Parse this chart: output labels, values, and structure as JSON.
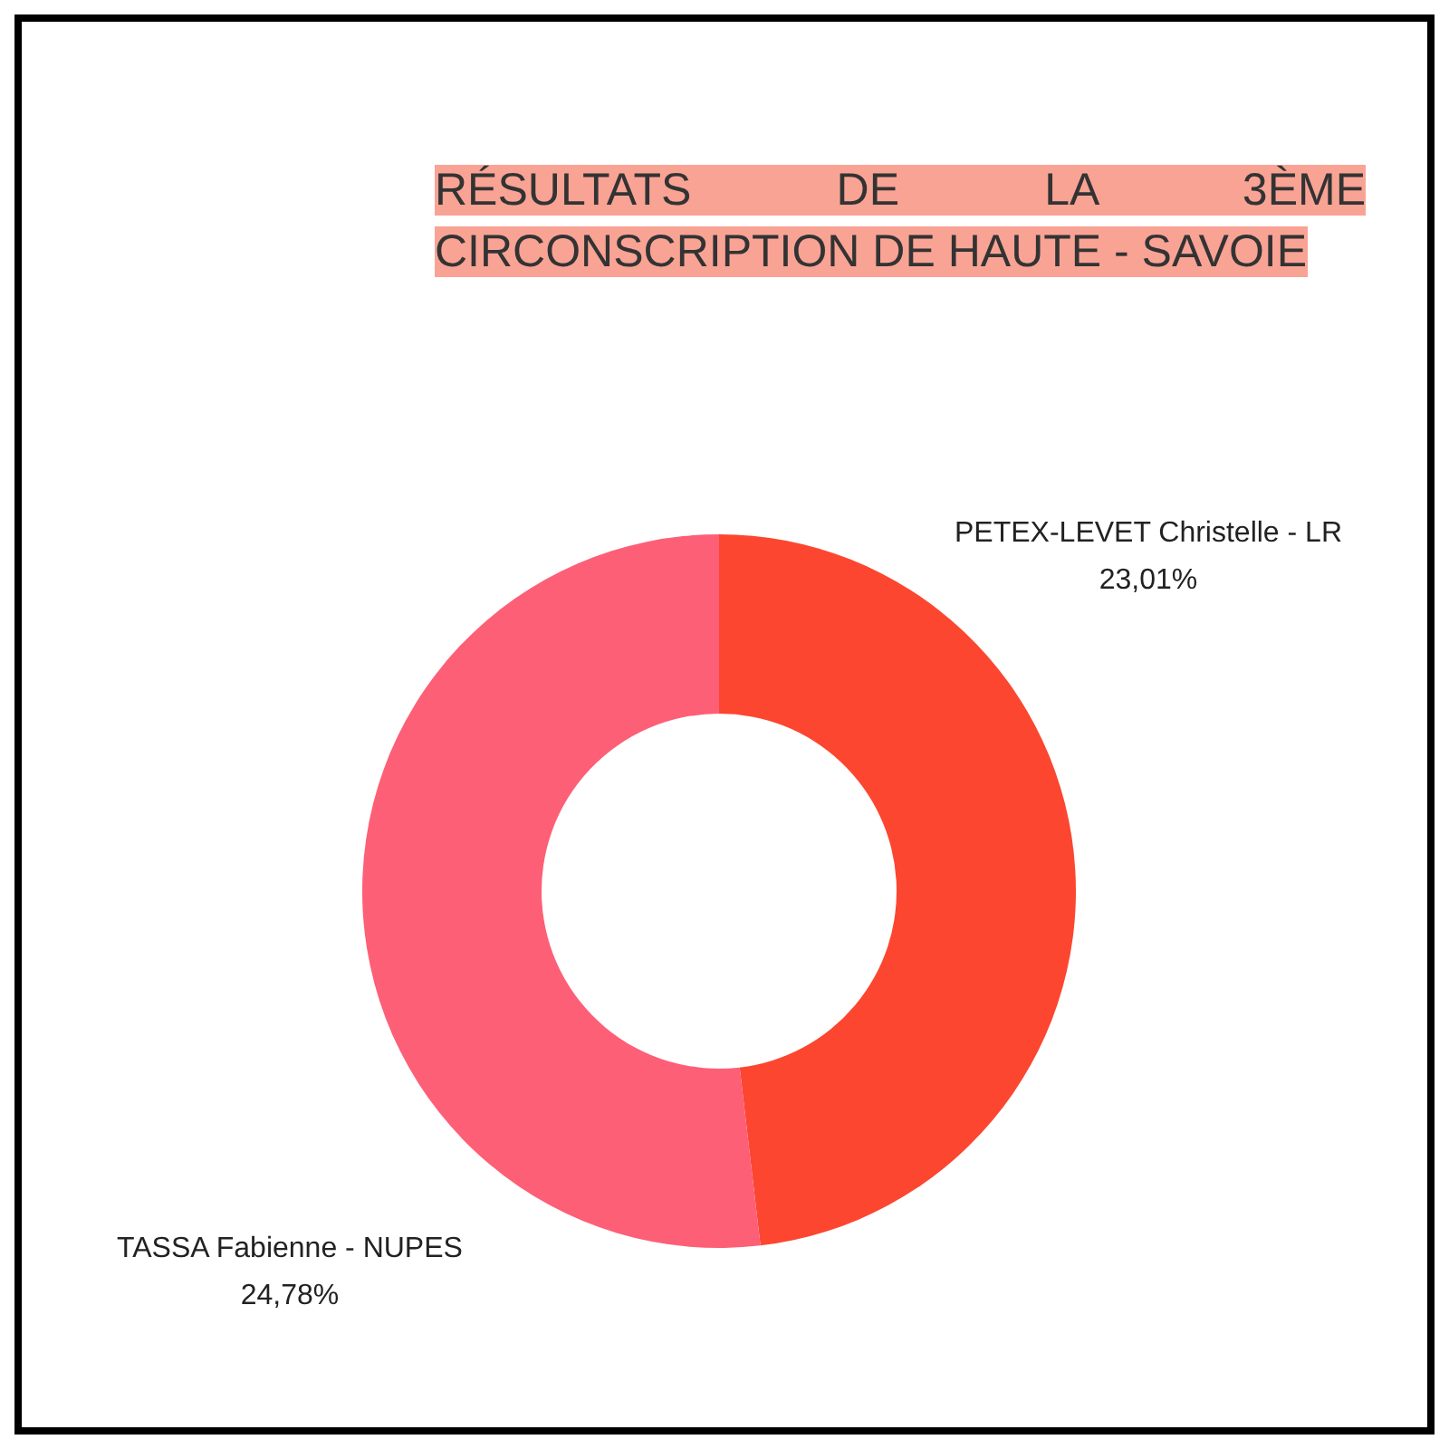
{
  "chart_data": {
    "type": "donut",
    "title": "RÉSULTATS DE LA 3ÈME CIRCONSCRIPTION DE HAUTE - SAVOIE",
    "categories": [
      "PETEX-LEVET Christelle -  LR",
      "TASSA Fabienne -  NUPES"
    ],
    "values": [
      23.01,
      24.78
    ],
    "colors": [
      "#fc4630",
      "#fd5f76"
    ],
    "value_labels": [
      "23,01%",
      "24,78%"
    ],
    "legend": false
  }
}
